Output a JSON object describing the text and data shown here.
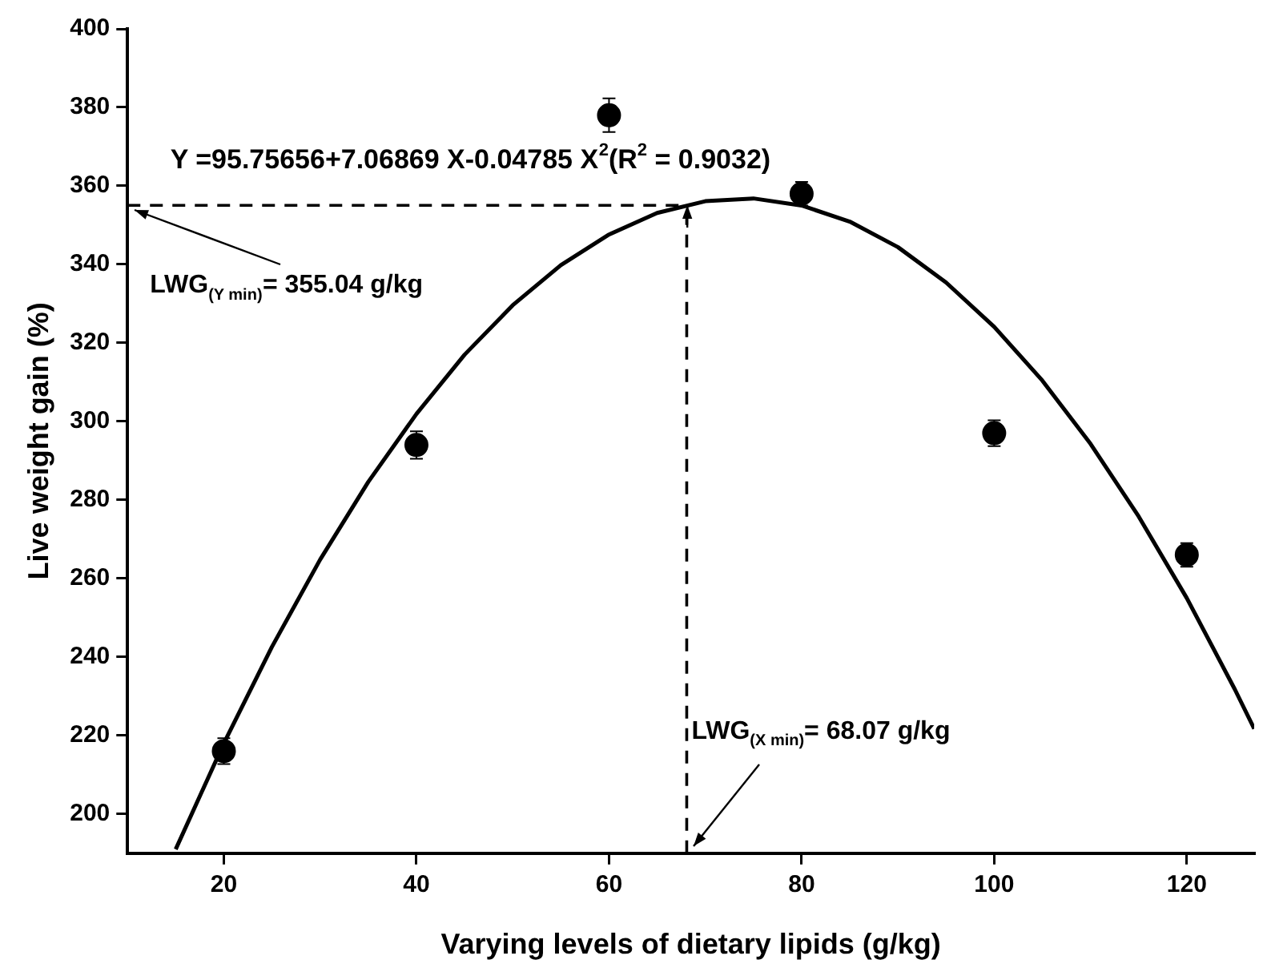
{
  "chart_data": {
    "type": "scatter",
    "xlabel": "Varying levels of dietary lipids (g/kg)",
    "ylabel": "Live weight gain (%)",
    "xlim": [
      10,
      127
    ],
    "xticks": [
      20,
      40,
      60,
      80,
      100,
      120
    ],
    "ylim": [
      190,
      400
    ],
    "yticks": [
      200,
      220,
      240,
      260,
      280,
      300,
      320,
      340,
      360,
      380,
      400
    ],
    "grid": false,
    "legend": false,
    "series": [
      {
        "type": "scatter",
        "marker": "circle",
        "color": "#000000",
        "x": [
          20,
          40,
          60,
          80,
          100,
          120
        ],
        "values": [
          216,
          294,
          378,
          358,
          297,
          266
        ],
        "errors": [
          3.3,
          3.5,
          4.3,
          3,
          3.3,
          3
        ]
      },
      {
        "type": "line",
        "marker": "none",
        "color": "#000000",
        "line_style": "solid",
        "x": [
          15,
          20,
          25,
          30,
          35,
          40,
          45,
          50,
          55,
          60,
          65,
          70,
          75,
          80,
          85,
          90,
          95,
          100,
          105,
          110,
          115,
          120,
          125,
          127
        ],
        "values": [
          191.0,
          218.0,
          242.6,
          264.8,
          284.6,
          301.9,
          317.0,
          329.6,
          339.8,
          347.6,
          353.1,
          356.1,
          356.8,
          355.0,
          350.9,
          344.4,
          335.4,
          324.1,
          310.4,
          294.3,
          275.8,
          255.0,
          231.7,
          221.7
        ]
      }
    ],
    "ref_lines": [
      {
        "axis": "y",
        "value": 355.04,
        "label": "LWG$_{(Y min)}$= 355.04 g/kg",
        "line_style": "dashed",
        "color": "#000000"
      },
      {
        "axis": "x",
        "value": 68.07,
        "label": "LWG$_{(X min)}$= 68.07 g/kg",
        "line_style": "dashed",
        "color": "#000000"
      }
    ],
    "annotations": [
      "Y =95.75656+7.06869 X-0.04785 X$^{2}$(R$^{2}$ = 0.9032)"
    ]
  }
}
